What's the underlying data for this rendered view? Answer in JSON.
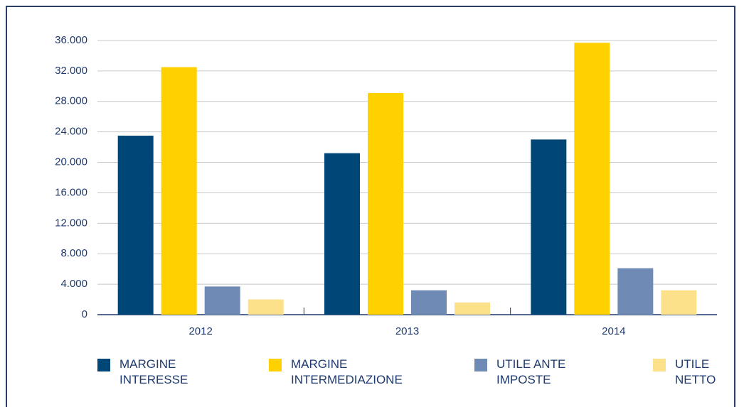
{
  "chart_data": {
    "type": "bar",
    "categories": [
      "2012",
      "2013",
      "2014"
    ],
    "series": [
      {
        "name": "MARGINE INTERESSE",
        "color": "#004677",
        "values": [
          23500,
          21200,
          23000
        ]
      },
      {
        "name": "MARGINE INTERMEDIAZIONE",
        "color": "#ffd100",
        "values": [
          32500,
          29100,
          35700
        ]
      },
      {
        "name": "UTILE ANTE IMPOSTE",
        "color": "#6f8bb5",
        "values": [
          3700,
          3200,
          6100
        ]
      },
      {
        "name": "UTILE NETTO",
        "color": "#fde18a",
        "values": [
          2000,
          1600,
          3200
        ]
      }
    ],
    "ylim": [
      0,
      36000
    ],
    "yticks": [
      0,
      {
        "value": 4000,
        "label": "4.000"
      },
      {
        "value": 8000,
        "label": "8.000"
      },
      {
        "value": 12000,
        "label": "12.000"
      },
      {
        "value": 16000,
        "label": "16.000"
      },
      {
        "value": 20000,
        "label": "20.000"
      },
      {
        "value": 24000,
        "label": "24.000"
      },
      {
        "value": 28000,
        "label": "28.000"
      },
      {
        "value": 32000,
        "label": "32.000"
      },
      {
        "value": 36000,
        "label": "36.000"
      }
    ],
    "grid": true,
    "legend": "bottom"
  }
}
